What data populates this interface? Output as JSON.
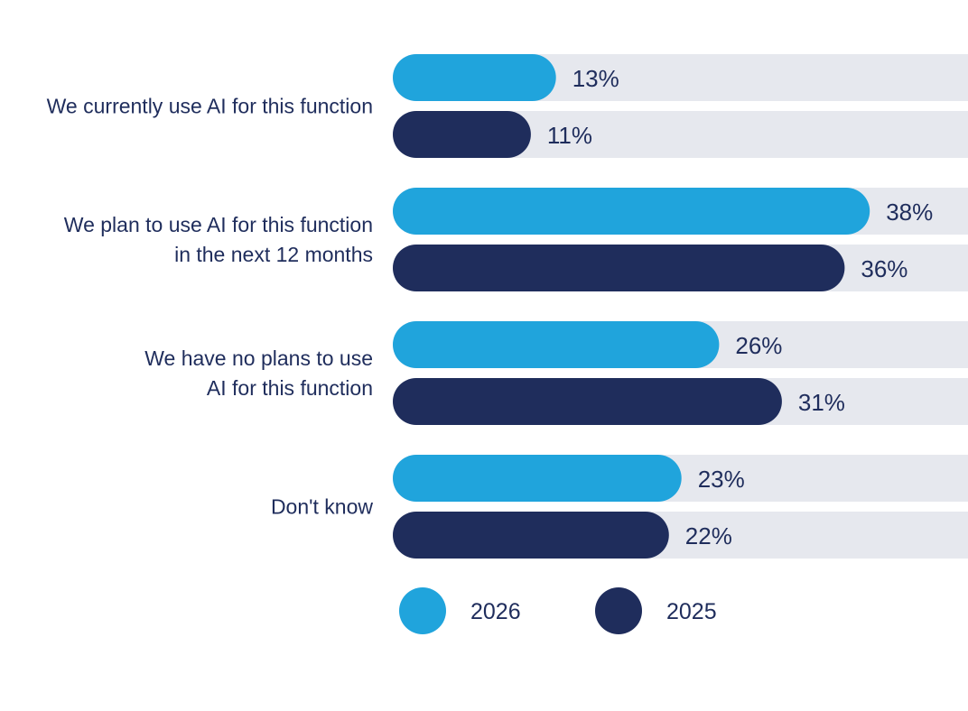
{
  "chart_data": {
    "type": "bar",
    "orientation": "horizontal",
    "categories": [
      [
        "We currently use AI for this function"
      ],
      [
        "We plan to use AI for this function",
        "in the next 12 months"
      ],
      [
        "We have no plans to use",
        "AI for this function"
      ],
      [
        "Don't know"
      ]
    ],
    "series": [
      {
        "name": "2026",
        "color": "#20a4dc",
        "values": [
          13,
          38,
          26,
          23
        ],
        "labels": [
          "13%",
          "38%",
          "26%",
          "23%"
        ]
      },
      {
        "name": "2025",
        "color": "#1f2d5c",
        "values": [
          11,
          36,
          31,
          22
        ],
        "labels": [
          "11%",
          "36%",
          "31%",
          "22%"
        ]
      }
    ],
    "xlim": [
      0,
      100
    ],
    "track_color": "#e6e8ee",
    "legend_position": "bottom",
    "title": "",
    "xlabel": "",
    "ylabel": ""
  }
}
